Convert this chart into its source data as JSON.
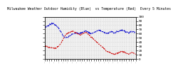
{
  "title": "Milwaukee Weather Outdoor Humidity (Blue)  vs Temperature (Red)  Every 5 Minutes",
  "title_fontsize": 3.5,
  "bg_color": "#ffffff",
  "plot_bg_color": "#f0f0f0",
  "grid_color": "#cccccc",
  "blue_color": "#0000cc",
  "red_color": "#cc0000",
  "tick_color": "#000000",
  "label_color": "#000000",
  "ylim": [
    0,
    100
  ],
  "n_points": 400,
  "humidity": [
    75,
    76,
    77,
    78,
    79,
    80,
    82,
    83,
    85,
    84,
    83,
    82,
    80,
    78,
    76,
    73,
    70,
    67,
    63,
    59,
    55,
    52,
    50,
    49,
    50,
    51,
    52,
    54,
    55,
    57,
    58,
    59,
    60,
    61,
    62,
    63,
    62,
    61,
    60,
    61,
    62,
    63,
    64,
    65,
    66,
    67,
    65,
    64,
    63,
    62,
    61,
    60,
    61,
    62,
    63,
    64,
    65,
    66,
    67,
    68,
    67,
    66,
    65,
    64,
    63,
    62,
    61,
    60,
    61,
    62,
    63,
    64,
    65,
    64,
    63,
    62,
    61,
    62,
    63,
    64,
    65,
    66,
    67,
    68,
    69,
    68,
    67,
    66,
    65,
    64,
    63,
    62,
    63,
    64,
    65,
    66,
    65,
    64,
    63,
    62
  ],
  "temperature": [
    30,
    30,
    29,
    29,
    28,
    28,
    27,
    27,
    26,
    26,
    25,
    25,
    26,
    27,
    28,
    30,
    32,
    35,
    38,
    42,
    46,
    50,
    54,
    57,
    59,
    61,
    62,
    63,
    64,
    65,
    66,
    65,
    64,
    63,
    62,
    61,
    60,
    59,
    58,
    57,
    58,
    59,
    60,
    61,
    62,
    63,
    61,
    59,
    57,
    55,
    53,
    51,
    49,
    47,
    45,
    43,
    41,
    39,
    37,
    35,
    33,
    31,
    29,
    27,
    25,
    23,
    21,
    19,
    18,
    17,
    16,
    15,
    14,
    13,
    12,
    11,
    10,
    11,
    12,
    13,
    14,
    15,
    16,
    17,
    18,
    17,
    16,
    15,
    14,
    13,
    12,
    11,
    12,
    13,
    14,
    15,
    14,
    13,
    12,
    11
  ],
  "ytick_labels": [
    "0",
    "10",
    "20",
    "30",
    "40",
    "50",
    "60",
    "70",
    "80",
    "90",
    "100"
  ],
  "ytick_vals": [
    0,
    10,
    20,
    30,
    40,
    50,
    60,
    70,
    80,
    90,
    100
  ],
  "n_xticks": 40
}
